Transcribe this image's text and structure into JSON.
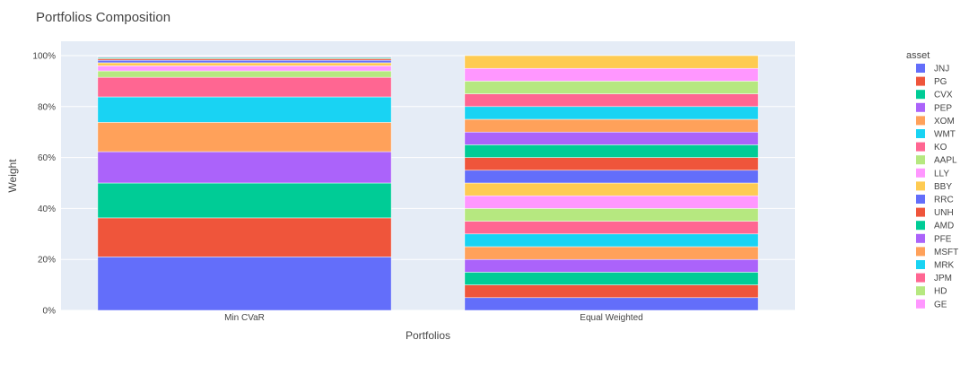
{
  "chart_data": {
    "type": "bar",
    "stacked": true,
    "title": "Portfolios Composition",
    "xlabel": "Portfolios",
    "ylabel": "Weight",
    "categories": [
      "Min CVaR",
      "Equal Weighted"
    ],
    "ylim": [
      0,
      1
    ],
    "yticks": [
      {
        "value": 0,
        "label": "0%"
      },
      {
        "value": 0.2,
        "label": "20%"
      },
      {
        "value": 0.4,
        "label": "40%"
      },
      {
        "value": 0.6,
        "label": "60%"
      },
      {
        "value": 0.8,
        "label": "80%"
      },
      {
        "value": 1.0,
        "label": "100%"
      }
    ],
    "grid": true,
    "plot_bgcolor": "#E5ECF6",
    "legend": {
      "title": "asset",
      "placement": "right"
    },
    "series": [
      {
        "name": "JNJ",
        "color": "#636EFA",
        "values": [
          0.21,
          0.05
        ]
      },
      {
        "name": "PG",
        "color": "#EF553B",
        "values": [
          0.153,
          0.05
        ]
      },
      {
        "name": "CVX",
        "color": "#00CC96",
        "values": [
          0.137,
          0.05
        ]
      },
      {
        "name": "PEP",
        "color": "#AB63FA",
        "values": [
          0.123,
          0.05
        ]
      },
      {
        "name": "XOM",
        "color": "#FFA15A",
        "values": [
          0.115,
          0.05
        ]
      },
      {
        "name": "WMT",
        "color": "#19D3F3",
        "values": [
          0.1,
          0.05
        ]
      },
      {
        "name": "KO",
        "color": "#FF6692",
        "values": [
          0.077,
          0.05
        ]
      },
      {
        "name": "AAPL",
        "color": "#B6E880",
        "values": [
          0.025,
          0.05
        ]
      },
      {
        "name": "LLY",
        "color": "#FF97FF",
        "values": [
          0.02,
          0.05
        ]
      },
      {
        "name": "BBY",
        "color": "#FECB52",
        "values": [
          0.012,
          0.05
        ]
      },
      {
        "name": "RRC",
        "color": "#636EFA",
        "values": [
          0.01,
          0.05
        ]
      },
      {
        "name": "UNH",
        "color": "#EF553B",
        "values": [
          0.006,
          0.05
        ]
      },
      {
        "name": "AMD",
        "color": "#00CC96",
        "values": [
          0.004,
          0.05
        ]
      },
      {
        "name": "PFE",
        "color": "#AB63FA",
        "values": [
          0.003,
          0.05
        ]
      },
      {
        "name": "MSFT",
        "color": "#FFA15A",
        "values": [
          0.002,
          0.05
        ]
      },
      {
        "name": "MRK",
        "color": "#19D3F3",
        "values": [
          0.001,
          0.05
        ]
      },
      {
        "name": "JPM",
        "color": "#FF6692",
        "values": [
          0.001,
          0.05
        ]
      },
      {
        "name": "HD",
        "color": "#B6E880",
        "values": [
          0.001,
          0.05
        ]
      },
      {
        "name": "GE",
        "color": "#FF97FF",
        "values": [
          0.0,
          0.05
        ]
      },
      {
        "name": "",
        "color": "#FECB52",
        "values": [
          0.0,
          0.05
        ]
      }
    ]
  }
}
